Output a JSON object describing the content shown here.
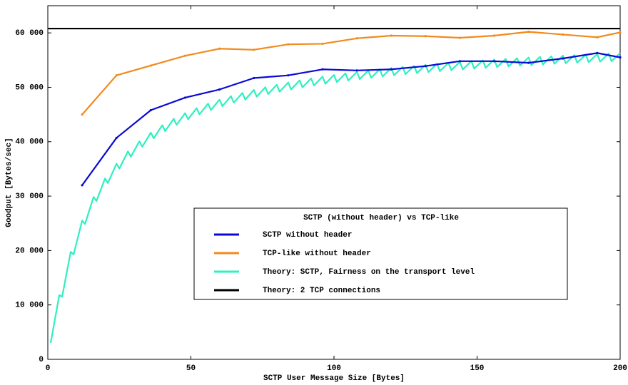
{
  "chart_data": {
    "type": "line",
    "xlabel": "SCTP User Message Size [Bytes]",
    "ylabel": "Goodput [Bytes/sec]",
    "xlim": [
      0,
      200
    ],
    "ylim": [
      0,
      65000
    ],
    "xticks": [
      0,
      50,
      100,
      150,
      200
    ],
    "yticks": [
      0,
      {
        "value": 10000,
        "label": "10 000"
      },
      {
        "value": 20000,
        "label": "20 000"
      },
      {
        "value": 30000,
        "label": "30 000"
      },
      {
        "value": 40000,
        "label": "40 000"
      },
      {
        "value": 50000,
        "label": "50 000"
      },
      {
        "value": 60000,
        "label": "60 000"
      }
    ],
    "grid": false,
    "legend_title": "SCTP (without header) vs TCP-like",
    "legend_loc": "center right",
    "series": [
      {
        "name": "SCTP without header",
        "color": "#0a0ad6",
        "markers": true,
        "x": [
          12,
          24,
          36,
          48,
          60,
          72,
          84,
          96,
          108,
          120,
          132,
          144,
          156,
          168,
          180,
          192,
          200
        ],
        "values": [
          32000,
          40700,
          45800,
          48100,
          49600,
          51700,
          52200,
          53300,
          53100,
          53300,
          53900,
          54800,
          54800,
          54500,
          55300,
          56300,
          55500
        ]
      },
      {
        "name": "TCP-like without header",
        "color": "#f28a1c",
        "markers": true,
        "x": [
          12,
          24,
          36,
          48,
          60,
          72,
          84,
          96,
          108,
          120,
          132,
          144,
          156,
          168,
          180,
          192,
          200
        ],
        "values": [
          45000,
          52200,
          54000,
          55800,
          57100,
          56900,
          57900,
          58000,
          59000,
          59500,
          59400,
          59100,
          59500,
          60200,
          59700,
          59200,
          60100
        ]
      },
      {
        "name": "Theory: SCTP, Fairness on the transport level",
        "color": "#2ef0c0",
        "markers": false,
        "x": [
          1,
          4,
          5,
          8,
          9,
          12,
          13,
          16,
          17,
          20,
          21,
          24,
          25,
          28,
          29,
          32,
          33,
          36,
          37,
          40,
          41,
          44,
          45,
          48,
          49,
          52,
          53,
          56,
          57,
          60,
          61,
          64,
          65,
          68,
          69,
          72,
          73,
          76,
          77,
          80,
          81,
          84,
          85,
          88,
          89,
          92,
          93,
          96,
          97,
          100,
          101,
          104,
          105,
          108,
          109,
          112,
          113,
          116,
          117,
          120,
          121,
          124,
          125,
          128,
          129,
          132,
          133,
          136,
          137,
          140,
          141,
          144,
          145,
          148,
          149,
          152,
          153,
          156,
          157,
          160,
          161,
          164,
          165,
          168,
          169,
          172,
          173,
          176,
          177,
          180,
          181,
          184,
          185,
          188,
          189,
          192,
          193,
          196,
          197,
          200
        ],
        "values": [
          3000,
          11790,
          11500,
          19760,
          19270,
          25510,
          24870,
          29850,
          29100,
          33240,
          32410,
          35970,
          35070,
          38210,
          37250,
          40080,
          39080,
          41670,
          40630,
          43030,
          41950,
          44220,
          43110,
          45250,
          44120,
          46170,
          45020,
          46990,
          45820,
          47720,
          46530,
          48380,
          47170,
          48970,
          47750,
          49520,
          48280,
          50010,
          48760,
          50460,
          49200,
          50880,
          49610,
          51270,
          49990,
          51630,
          50340,
          51960,
          50660,
          52270,
          50960,
          52560,
          51250,
          52830,
          51510,
          53080,
          51750,
          53320,
          51990,
          53550,
          52210,
          53760,
          52420,
          53960,
          52610,
          54150,
          52800,
          54330,
          52970,
          54500,
          53140,
          54660,
          53290,
          54810,
          53440,
          54960,
          53590,
          55100,
          53720,
          55230,
          53850,
          55360,
          53980,
          55480,
          54090,
          55600,
          54210,
          55710,
          54320,
          55820,
          54420,
          55920,
          54520,
          56020,
          54620,
          56120,
          54720,
          56210,
          54800,
          56300
        ]
      },
      {
        "name": "Theory: 2 TCP connections",
        "color": "#000000",
        "markers": false,
        "x": [
          0,
          200
        ],
        "values": [
          60800,
          60800
        ]
      }
    ]
  }
}
